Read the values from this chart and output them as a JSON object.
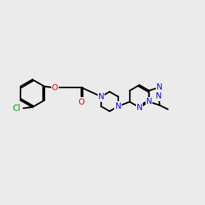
{
  "bg_color": "#ebebeb",
  "bond_color": "#000000",
  "bond_width": 1.6,
  "font_size": 8.5,
  "colors": {
    "N": "#0000ee",
    "O": "#ee0000",
    "Cl": "#008800",
    "C": "#000000"
  },
  "xlim": [
    0,
    10
  ],
  "ylim": [
    0,
    10
  ]
}
